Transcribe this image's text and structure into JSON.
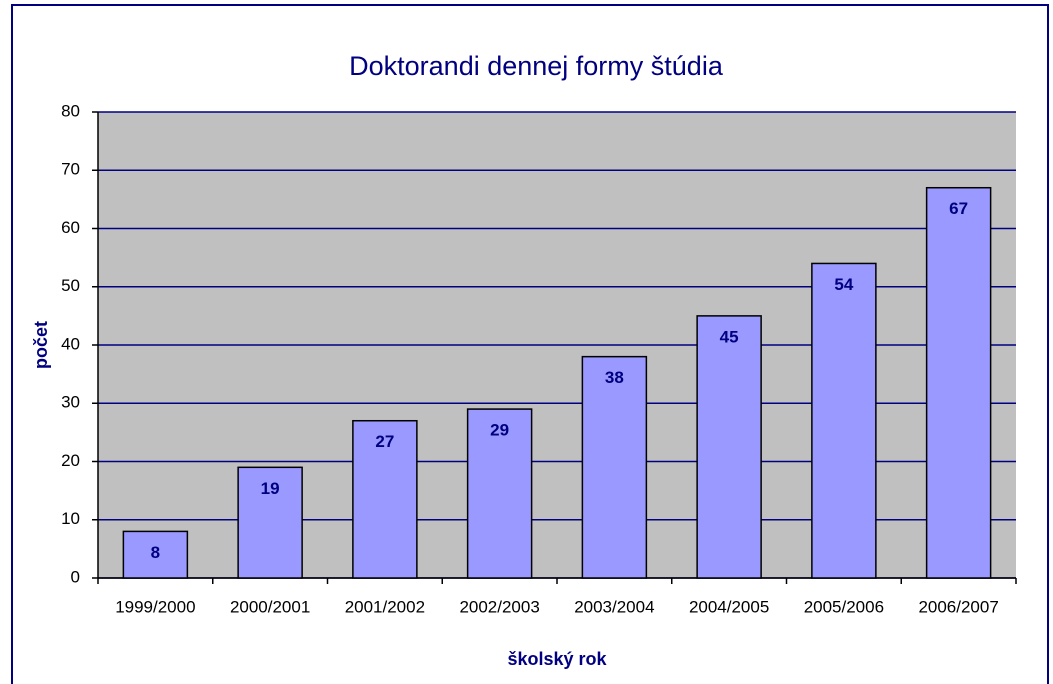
{
  "chart_data": {
    "type": "bar",
    "title": "Doktorandi dennej formy štúdia",
    "x_label": "školský rok",
    "y_label": "počet",
    "categories": [
      "1999/2000",
      "2000/2001",
      "2001/2002",
      "2002/2003",
      "2003/2004",
      "2004/2005",
      "2005/2006",
      "2006/2007"
    ],
    "values": [
      8,
      19,
      27,
      29,
      38,
      45,
      54,
      67
    ],
    "color": "#9999ff",
    "ylim": [
      0,
      80
    ],
    "yticks": [
      0,
      10,
      20,
      30,
      40,
      50,
      60,
      70,
      80
    ],
    "grid": true
  }
}
